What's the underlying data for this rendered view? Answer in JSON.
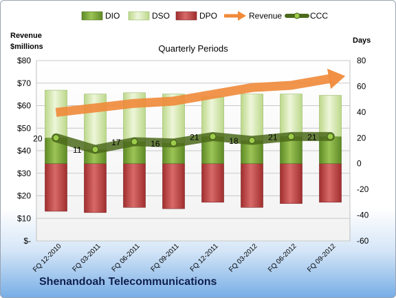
{
  "chart_data": {
    "type": "bar",
    "title": "Quarterly Periods",
    "categories": [
      "FQ 12-2010",
      "FQ 03-2011",
      "FQ 06-2011",
      "FQ 09-2011",
      "FQ 12-2011",
      "FQ 03-2012",
      "FQ 06-2012",
      "FQ 09-2012"
    ],
    "series": [
      {
        "name": "DIO",
        "axis": "right",
        "style": "stacked-bar-above-zero",
        "values": [
          20,
          11,
          17,
          16,
          21,
          18,
          21,
          21
        ]
      },
      {
        "name": "DSO",
        "axis": "right",
        "style": "stacked-bar-above-zero",
        "values": [
          37,
          43,
          38,
          38,
          31,
          36,
          33,
          32
        ]
      },
      {
        "name": "DPO",
        "axis": "right",
        "style": "bar-below-zero",
        "values": [
          -37,
          -38,
          -34,
          -35,
          -30,
          -34,
          -31,
          -30
        ]
      },
      {
        "name": "Revenue",
        "axis": "left",
        "style": "trend-arrow",
        "values": [
          57,
          59,
          61,
          62,
          65,
          68,
          69,
          72
        ]
      },
      {
        "name": "CCC",
        "axis": "right",
        "style": "line-markers",
        "values": [
          20,
          11,
          17,
          16,
          21,
          18,
          21,
          21
        ]
      }
    ],
    "data_labels": [
      "20",
      "11",
      "17",
      "16",
      "21",
      "18",
      "21",
      "21"
    ],
    "y_left": {
      "label_line1": "Revenue",
      "label_line2": "$millions",
      "ticks": [
        "$-",
        "$10",
        "$20",
        "$30",
        "$40",
        "$50",
        "$60",
        "$70",
        "$80"
      ],
      "range": [
        0,
        80
      ]
    },
    "y_right": {
      "label": "Days",
      "ticks": [
        "-60",
        "-40",
        "-20",
        "0",
        "20",
        "40",
        "60",
        "80"
      ],
      "range": [
        -60,
        80
      ]
    },
    "grid": true,
    "legend_position": "top",
    "colors": {
      "DIO": "#6f9a2e",
      "DSO": "#cfe3a1",
      "DPO": "#b83c3c",
      "Revenue": "#f08a3a",
      "CCC": "#5c7a24"
    }
  },
  "company": "Shenandoah Telecommunications"
}
